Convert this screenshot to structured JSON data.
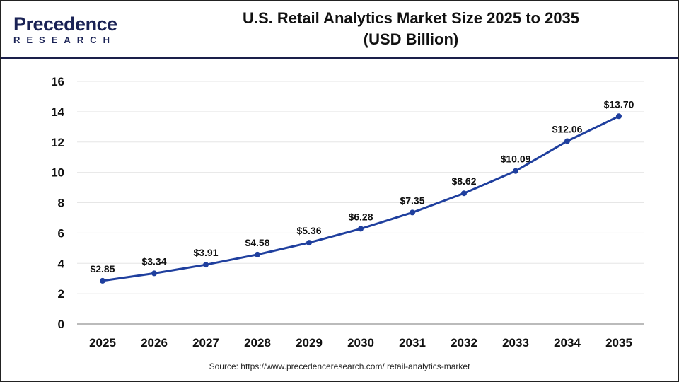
{
  "logo": {
    "line1": "Precedence",
    "line2": "RESEARCH"
  },
  "chart_data": {
    "type": "line",
    "title": "U.S. Retail Analytics Market Size 2025 to 2035",
    "subtitle": "(USD Billion)",
    "categories": [
      "2025",
      "2026",
      "2027",
      "2028",
      "2029",
      "2030",
      "2031",
      "2032",
      "2033",
      "2034",
      "2035"
    ],
    "values": [
      2.85,
      3.34,
      3.91,
      4.58,
      5.36,
      6.28,
      7.35,
      8.62,
      10.09,
      12.06,
      13.7
    ],
    "data_labels": [
      "$2.85",
      "$3.34",
      "$3.91",
      "$4.58",
      "$5.36",
      "$6.28",
      "$7.35",
      "$8.62",
      "$10.09",
      "$12.06",
      "$13.70"
    ],
    "yticks": [
      0,
      2,
      4,
      6,
      8,
      10,
      12,
      14,
      16
    ],
    "ylim": [
      0,
      16
    ],
    "grid": true,
    "line_color": "#1f3f9e"
  },
  "source": "Source: https://www.precedenceresearch.com/ retail-analytics-market"
}
